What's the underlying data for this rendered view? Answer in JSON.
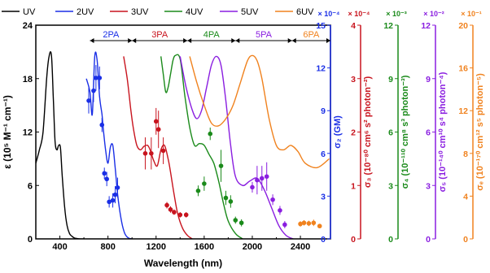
{
  "chart_data": {
    "type": "line",
    "legend": {
      "placement": "top",
      "entries": [
        {
          "label": "UV",
          "color": "#000000"
        },
        {
          "label": "2UV",
          "color": "#1a2fe6"
        },
        {
          "label": "3UV",
          "color": "#c8141e"
        },
        {
          "label": "4UV",
          "color": "#1a8a1a"
        },
        {
          "label": "5UV",
          "color": "#8a1ee0"
        },
        {
          "label": "6UV",
          "color": "#f0821e"
        }
      ]
    },
    "xaxis": {
      "label": "Wavelength (nm)",
      "min": 200,
      "max": 2650,
      "ticks": [
        400,
        800,
        1200,
        1600,
        2000,
        2400
      ],
      "tick_labels": [
        "400",
        "800",
        "1200",
        "1600",
        "2000",
        "2400"
      ]
    },
    "yaxis_left": {
      "label": "ε (10⁵ M⁻¹ cm⁻¹)",
      "min": 0,
      "max": 24,
      "ticks": [
        0,
        6,
        12,
        18,
        24
      ],
      "tick_labels": [
        "0",
        "6",
        "12",
        "18",
        "24"
      ]
    },
    "right_axes": [
      {
        "id": "s2",
        "label": "σ₂ (GM)",
        "multiplier": "× 10⁻⁴",
        "color": "#1a2fe6",
        "max": 15,
        "ticks": [
          0,
          3,
          6,
          9,
          12,
          15
        ],
        "tick_labels": [
          "0",
          "3",
          "6",
          "9",
          "12",
          "15"
        ]
      },
      {
        "id": "s3",
        "label": "σ₃ (10⁻⁸⁰ cm⁶ s² photon⁻²)",
        "multiplier": "× 10⁻⁴",
        "color": "#c8141e",
        "max": 4,
        "ticks": [
          0,
          1,
          2,
          3,
          4
        ],
        "tick_labels": [
          "0",
          "1",
          "2",
          "3",
          "4"
        ]
      },
      {
        "id": "s4",
        "label": "σ₄ (10⁻¹¹⁰ cm⁸ s³ photon⁻³)",
        "multiplier": "× 10⁻³",
        "color": "#1a8a1a",
        "max": 12,
        "ticks": [
          0,
          3,
          6,
          9,
          12
        ],
        "tick_labels": [
          "0",
          "3",
          "6",
          "9",
          "12"
        ]
      },
      {
        "id": "s5",
        "label": "σ₅ (10⁻¹⁴⁰ cm¹⁰ s⁴ photon⁻⁴)",
        "multiplier": "× 10⁻²",
        "color": "#8a1ee0",
        "max": 12,
        "ticks": [
          0,
          3,
          6,
          9,
          12
        ],
        "tick_labels": [
          "0",
          "3",
          "6",
          "9",
          "12"
        ]
      },
      {
        "id": "s6",
        "label": "σₑ (10⁻¹⁷⁰ cm¹² s⁵ photon⁻⁵)",
        "multiplier": "× 10⁻¹",
        "color": "#f0821e",
        "max": 20,
        "ticks": [
          0,
          4,
          8,
          12,
          16,
          20
        ],
        "tick_labels": [
          "0",
          "4",
          "8",
          "12",
          "16",
          "20"
        ]
      }
    ],
    "regions": [
      {
        "label": "2PA",
        "from": 650,
        "to": 1000,
        "color": "#1a2fe6"
      },
      {
        "label": "3PA",
        "from": 1000,
        "to": 1460,
        "color": "#c8141e"
      },
      {
        "label": "4PA",
        "from": 1460,
        "to": 1860,
        "color": "#1a8a1a"
      },
      {
        "label": "5PA",
        "from": 1860,
        "to": 2330,
        "color": "#8a1ee0"
      },
      {
        "label": "6PA",
        "from": 2330,
        "to": 2650,
        "color": "#f0821e"
      }
    ],
    "series": [
      {
        "name": "UV",
        "axis": "left",
        "color": "#000000",
        "x": [
          200,
          230,
          260,
          290,
          310,
          330,
          345,
          360,
          375,
          390,
          405,
          420,
          440,
          460,
          480,
          500,
          520,
          540,
          560,
          600
        ],
        "y": [
          8.5,
          10,
          12,
          18,
          20.5,
          20.6,
          16,
          11,
          10,
          10.5,
          10.2,
          7,
          3.5,
          1.5,
          0.6,
          0.3,
          0.1,
          0.05,
          0,
          0
        ]
      },
      {
        "name": "2UV",
        "axis": "left",
        "color": "#1a2fe6",
        "x": [
          620,
          650,
          670,
          690,
          710,
          730,
          750,
          760,
          780,
          800,
          820,
          840,
          860,
          880,
          900,
          920,
          940,
          960,
          980,
          1000
        ],
        "y": [
          18,
          16.5,
          14,
          20.5,
          20,
          16,
          14,
          12.5,
          10,
          8.5,
          10.3,
          10.5,
          8,
          5,
          3,
          1.5,
          0.6,
          0.2,
          0.05,
          0
        ]
      },
      {
        "name": "3UV",
        "axis": "left",
        "color": "#c8141e",
        "x": [
          930,
          960,
          990,
          1010,
          1040,
          1070,
          1100,
          1130,
          1150,
          1180,
          1210,
          1240,
          1270,
          1300,
          1320,
          1350,
          1380,
          1420,
          1460,
          1500
        ],
        "y": [
          20.5,
          18,
          14.5,
          12.5,
          10.5,
          10,
          10.4,
          10.5,
          10,
          8.8,
          8.2,
          10,
          10.5,
          9,
          7.5,
          5,
          2.8,
          1.2,
          0.4,
          0
        ]
      },
      {
        "name": "4UV",
        "axis": "left",
        "color": "#1a8a1a",
        "x": [
          1240,
          1260,
          1280,
          1300,
          1320,
          1340,
          1360,
          1400,
          1440,
          1480,
          1520,
          1560,
          1600,
          1640,
          1680,
          1720,
          1760,
          1800,
          1860,
          1920
        ],
        "y": [
          20.5,
          18.5,
          16.5,
          17,
          18.5,
          20,
          20.6,
          20.2,
          16,
          12.5,
          10.5,
          10.7,
          10.5,
          9.5,
          8.5,
          6.5,
          4,
          2,
          0.6,
          0
        ]
      },
      {
        "name": "5UV",
        "axis": "left",
        "color": "#8a1ee0",
        "x": [
          1400,
          1450,
          1500,
          1540,
          1580,
          1620,
          1660,
          1700,
          1740,
          1780,
          1820,
          1860,
          1920,
          1980,
          2040,
          2100,
          2160,
          2220,
          2280,
          2340
        ],
        "y": [
          20.5,
          17,
          14.5,
          13.5,
          14.5,
          17,
          19.5,
          20.5,
          19.5,
          15.5,
          10.5,
          7,
          6,
          6.5,
          6.8,
          5.5,
          3.5,
          1.5,
          0.4,
          0
        ]
      },
      {
        "name": "6UV",
        "axis": "left",
        "color": "#f0821e",
        "x": [
          1480,
          1540,
          1600,
          1660,
          1720,
          1780,
          1840,
          1900,
          1960,
          2000,
          2040,
          2080,
          2140,
          2200,
          2260,
          2320,
          2380,
          2440,
          2540,
          2640
        ],
        "y": [
          20.5,
          17.5,
          15,
          13,
          12.7,
          13.5,
          15,
          17.5,
          20,
          20.6,
          20,
          18,
          13.5,
          10.5,
          10,
          10.5,
          9.8,
          8.5,
          8,
          9
        ]
      }
    ],
    "points": [
      {
        "name": "σ2 data",
        "axis": "s2",
        "color": "#1a2fe6",
        "x": [
          640,
          680,
          700,
          730,
          750,
          770,
          790,
          810,
          840,
          860,
          880
        ],
        "y": [
          9.7,
          10.4,
          11.3,
          11.3,
          8,
          4.6,
          4.2,
          2.6,
          2.7,
          3.1,
          3.6
        ],
        "err": [
          0.9,
          0.8,
          0.9,
          0.8,
          0.5,
          0.4,
          0.5,
          0.4,
          0.5,
          0.6,
          0.7
        ]
      },
      {
        "name": "σ3 data",
        "axis": "s3",
        "color": "#c8141e",
        "x": [
          1110,
          1160,
          1200,
          1220,
          1260,
          1290,
          1320,
          1350,
          1400,
          1450
        ],
        "y": [
          1.6,
          1.6,
          2.2,
          2.05,
          1.65,
          0.63,
          0.55,
          0.5,
          0.45,
          0.45
        ],
        "err": [
          0.3,
          0.3,
          0.25,
          0.35,
          0.25,
          0.06,
          0.06,
          0.05,
          0.05,
          0.05
        ]
      },
      {
        "name": "σ4 data",
        "axis": "s4",
        "color": "#1a8a1a",
        "x": [
          1550,
          1600,
          1650,
          1740,
          1780,
          1820,
          1860,
          1910
        ],
        "y": [
          2.7,
          3.1,
          5.9,
          4.1,
          2.3,
          2.1,
          1.05,
          0.9
        ],
        "err": [
          0.3,
          0.4,
          0.35,
          0.9,
          0.4,
          0.35,
          0.2,
          0.2
        ]
      },
      {
        "name": "σ5 data",
        "axis": "s5",
        "color": "#8a1ee0",
        "x": [
          2000,
          2040,
          2080,
          2120,
          2170,
          2230,
          2270
        ],
        "y": [
          2.9,
          3.3,
          3.4,
          3.5,
          2.2,
          1.6,
          0.8
        ],
        "err": [
          0.3,
          0.8,
          0.7,
          0.8,
          0.3,
          0.25,
          0.2
        ]
      },
      {
        "name": "σe data",
        "axis": "s6",
        "color": "#f0821e",
        "x": [
          2400,
          2430,
          2470,
          2510,
          2560
        ],
        "y": [
          1.4,
          1.5,
          1.45,
          1.5,
          1.2
        ],
        "err": [
          0.25,
          0.25,
          0.25,
          0.3,
          0.15
        ]
      }
    ]
  }
}
